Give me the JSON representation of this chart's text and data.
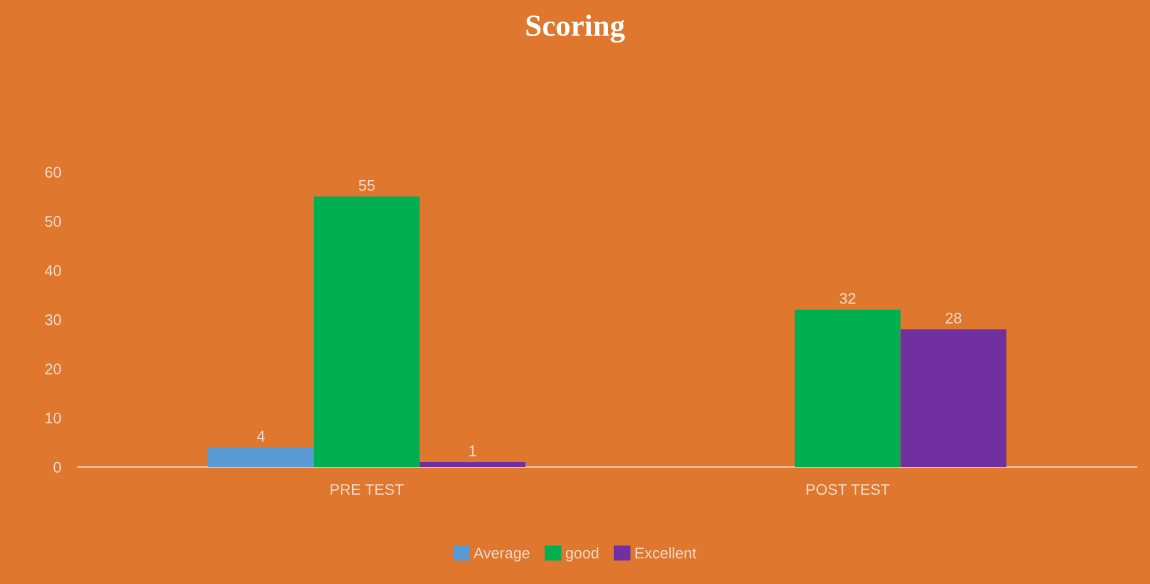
{
  "chart_data": {
    "type": "bar",
    "title": "Scoring",
    "categories": [
      "PRE TEST",
      "POST TEST"
    ],
    "series": [
      {
        "name": "Average",
        "color": "#5b9bd5",
        "values": [
          4,
          null
        ]
      },
      {
        "name": "good",
        "color": "#00b050",
        "values": [
          55,
          32
        ]
      },
      {
        "name": "Excellent",
        "color": "#7030a0",
        "values": [
          1,
          28
        ]
      }
    ],
    "ylim": [
      0,
      60
    ],
    "yticks": [
      0,
      10,
      20,
      30,
      40,
      50,
      60
    ],
    "grid": false,
    "legend": "bottom",
    "data_labels": true
  }
}
